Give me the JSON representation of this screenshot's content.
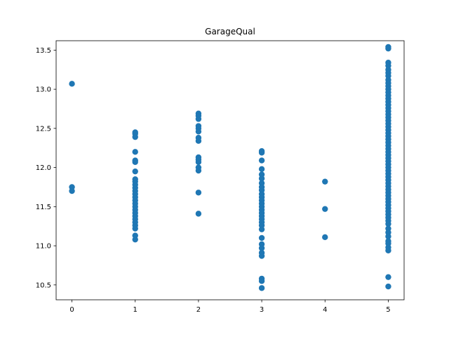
{
  "chart_data": {
    "type": "scatter",
    "title": "GarageQual",
    "xlabel": "",
    "ylabel": "",
    "xlim": [
      -0.25,
      5.25
    ],
    "ylim": [
      10.31,
      13.62
    ],
    "x_ticks": [
      0,
      1,
      2,
      3,
      4,
      5
    ],
    "x_tick_labels": [
      "0",
      "1",
      "2",
      "3",
      "4",
      "5"
    ],
    "y_ticks": [
      10.5,
      11.0,
      11.5,
      12.0,
      12.5,
      13.0,
      13.5
    ],
    "y_tick_labels": [
      "10.5",
      "11.0",
      "11.5",
      "12.0",
      "12.5",
      "13.0",
      "13.5"
    ],
    "grid": false,
    "color": "#1f77b4",
    "points": [
      {
        "x": 0,
        "y": 13.07
      },
      {
        "x": 0,
        "y": 11.75
      },
      {
        "x": 0,
        "y": 11.7
      },
      {
        "x": 1,
        "y": 12.45
      },
      {
        "x": 1,
        "y": 12.43
      },
      {
        "x": 1,
        "y": 12.39
      },
      {
        "x": 1,
        "y": 12.2
      },
      {
        "x": 1,
        "y": 12.09
      },
      {
        "x": 1,
        "y": 12.07
      },
      {
        "x": 1,
        "y": 11.95
      },
      {
        "x": 1,
        "y": 11.85
      },
      {
        "x": 1,
        "y": 11.82
      },
      {
        "x": 1,
        "y": 11.78
      },
      {
        "x": 1,
        "y": 11.74
      },
      {
        "x": 1,
        "y": 11.7
      },
      {
        "x": 1,
        "y": 11.66
      },
      {
        "x": 1,
        "y": 11.62
      },
      {
        "x": 1,
        "y": 11.58
      },
      {
        "x": 1,
        "y": 11.54
      },
      {
        "x": 1,
        "y": 11.5
      },
      {
        "x": 1,
        "y": 11.46
      },
      {
        "x": 1,
        "y": 11.42
      },
      {
        "x": 1,
        "y": 11.38
      },
      {
        "x": 1,
        "y": 11.34
      },
      {
        "x": 1,
        "y": 11.3
      },
      {
        "x": 1,
        "y": 11.26
      },
      {
        "x": 1,
        "y": 11.22
      },
      {
        "x": 1,
        "y": 11.13
      },
      {
        "x": 1,
        "y": 11.08
      },
      {
        "x": 2,
        "y": 12.69
      },
      {
        "x": 2,
        "y": 12.66
      },
      {
        "x": 2,
        "y": 12.62
      },
      {
        "x": 2,
        "y": 12.53
      },
      {
        "x": 2,
        "y": 12.5
      },
      {
        "x": 2,
        "y": 12.46
      },
      {
        "x": 2,
        "y": 12.38
      },
      {
        "x": 2,
        "y": 12.34
      },
      {
        "x": 2,
        "y": 12.13
      },
      {
        "x": 2,
        "y": 12.1
      },
      {
        "x": 2,
        "y": 12.07
      },
      {
        "x": 2,
        "y": 12.0
      },
      {
        "x": 2,
        "y": 11.96
      },
      {
        "x": 2,
        "y": 11.68
      },
      {
        "x": 2,
        "y": 11.41
      },
      {
        "x": 3,
        "y": 12.21
      },
      {
        "x": 3,
        "y": 12.19
      },
      {
        "x": 3,
        "y": 12.09
      },
      {
        "x": 3,
        "y": 11.98
      },
      {
        "x": 3,
        "y": 11.91
      },
      {
        "x": 3,
        "y": 11.86
      },
      {
        "x": 3,
        "y": 11.8
      },
      {
        "x": 3,
        "y": 11.75
      },
      {
        "x": 3,
        "y": 11.71
      },
      {
        "x": 3,
        "y": 11.66
      },
      {
        "x": 3,
        "y": 11.62
      },
      {
        "x": 3,
        "y": 11.58
      },
      {
        "x": 3,
        "y": 11.54
      },
      {
        "x": 3,
        "y": 11.5
      },
      {
        "x": 3,
        "y": 11.46
      },
      {
        "x": 3,
        "y": 11.42
      },
      {
        "x": 3,
        "y": 11.38
      },
      {
        "x": 3,
        "y": 11.34
      },
      {
        "x": 3,
        "y": 11.3
      },
      {
        "x": 3,
        "y": 11.26
      },
      {
        "x": 3,
        "y": 11.21
      },
      {
        "x": 3,
        "y": 11.1
      },
      {
        "x": 3,
        "y": 11.02
      },
      {
        "x": 3,
        "y": 10.97
      },
      {
        "x": 3,
        "y": 10.91
      },
      {
        "x": 3,
        "y": 10.87
      },
      {
        "x": 3,
        "y": 10.58
      },
      {
        "x": 3,
        "y": 10.55
      },
      {
        "x": 3,
        "y": 10.46
      },
      {
        "x": 4,
        "y": 11.82
      },
      {
        "x": 4,
        "y": 11.47
      },
      {
        "x": 4,
        "y": 11.11
      },
      {
        "x": 5,
        "y": 13.54
      },
      {
        "x": 5,
        "y": 13.52
      },
      {
        "x": 5,
        "y": 13.34
      },
      {
        "x": 5,
        "y": 13.3
      },
      {
        "x": 5,
        "y": 13.25
      },
      {
        "x": 5,
        "y": 13.21
      },
      {
        "x": 5,
        "y": 13.17
      },
      {
        "x": 5,
        "y": 13.12
      },
      {
        "x": 5,
        "y": 13.08
      },
      {
        "x": 5,
        "y": 13.04
      },
      {
        "x": 5,
        "y": 13.0
      },
      {
        "x": 5,
        "y": 12.96
      },
      {
        "x": 5,
        "y": 12.92
      },
      {
        "x": 5,
        "y": 12.88
      },
      {
        "x": 5,
        "y": 12.84
      },
      {
        "x": 5,
        "y": 12.8
      },
      {
        "x": 5,
        "y": 12.76
      },
      {
        "x": 5,
        "y": 12.72
      },
      {
        "x": 5,
        "y": 12.68
      },
      {
        "x": 5,
        "y": 12.64
      },
      {
        "x": 5,
        "y": 12.6
      },
      {
        "x": 5,
        "y": 12.56
      },
      {
        "x": 5,
        "y": 12.52
      },
      {
        "x": 5,
        "y": 12.48
      },
      {
        "x": 5,
        "y": 12.44
      },
      {
        "x": 5,
        "y": 12.4
      },
      {
        "x": 5,
        "y": 12.36
      },
      {
        "x": 5,
        "y": 12.32
      },
      {
        "x": 5,
        "y": 12.28
      },
      {
        "x": 5,
        "y": 12.24
      },
      {
        "x": 5,
        "y": 12.2
      },
      {
        "x": 5,
        "y": 12.16
      },
      {
        "x": 5,
        "y": 12.12
      },
      {
        "x": 5,
        "y": 12.08
      },
      {
        "x": 5,
        "y": 12.04
      },
      {
        "x": 5,
        "y": 12.0
      },
      {
        "x": 5,
        "y": 11.96
      },
      {
        "x": 5,
        "y": 11.92
      },
      {
        "x": 5,
        "y": 11.88
      },
      {
        "x": 5,
        "y": 11.84
      },
      {
        "x": 5,
        "y": 11.8
      },
      {
        "x": 5,
        "y": 11.76
      },
      {
        "x": 5,
        "y": 11.72
      },
      {
        "x": 5,
        "y": 11.68
      },
      {
        "x": 5,
        "y": 11.64
      },
      {
        "x": 5,
        "y": 11.6
      },
      {
        "x": 5,
        "y": 11.56
      },
      {
        "x": 5,
        "y": 11.52
      },
      {
        "x": 5,
        "y": 11.48
      },
      {
        "x": 5,
        "y": 11.44
      },
      {
        "x": 5,
        "y": 11.4
      },
      {
        "x": 5,
        "y": 11.36
      },
      {
        "x": 5,
        "y": 11.32
      },
      {
        "x": 5,
        "y": 11.28
      },
      {
        "x": 5,
        "y": 11.22
      },
      {
        "x": 5,
        "y": 11.17
      },
      {
        "x": 5,
        "y": 11.12
      },
      {
        "x": 5,
        "y": 11.06
      },
      {
        "x": 5,
        "y": 11.03
      },
      {
        "x": 5,
        "y": 10.98
      },
      {
        "x": 5,
        "y": 10.94
      },
      {
        "x": 5,
        "y": 10.6
      },
      {
        "x": 5,
        "y": 10.48
      }
    ]
  }
}
